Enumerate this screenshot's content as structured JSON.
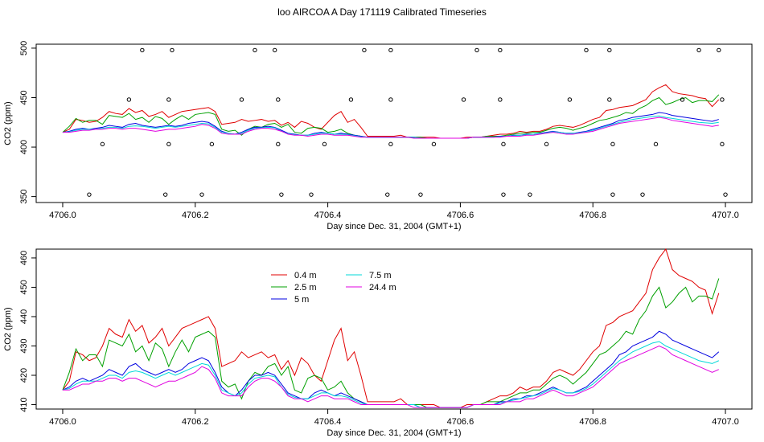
{
  "title": "loo AIRCOA A  Day 171119  Calibrated Timeseries",
  "colors": {
    "0.4 m": "#e00000",
    "2.5 m": "#00a000",
    "5 m": "#0000e0",
    "7.5 m": "#00d8d8",
    "24.4 m": "#e000e0"
  },
  "chart_data": [
    {
      "type": "line",
      "xlabel": "Day since Dec. 31, 2004 (GMT+1)",
      "ylabel": "CO2 (ppm)",
      "xlim": [
        4706.0,
        4707.0
      ],
      "ylim": [
        350,
        500
      ],
      "xticks": [
        "4706.0",
        "4706.2",
        "4706.4",
        "4706.6",
        "4706.8",
        "4707.0"
      ],
      "yticks": [
        "350",
        "400",
        "450",
        "500"
      ],
      "x": [
        4706.0,
        4706.01,
        4706.02,
        4706.03,
        4706.04,
        4706.05,
        4706.06,
        4706.07,
        4706.08,
        4706.09,
        4706.1,
        4706.11,
        4706.12,
        4706.13,
        4706.14,
        4706.15,
        4706.16,
        4706.17,
        4706.18,
        4706.19,
        4706.2,
        4706.21,
        4706.22,
        4706.23,
        4706.24,
        4706.25,
        4706.26,
        4706.27,
        4706.28,
        4706.29,
        4706.3,
        4706.31,
        4706.32,
        4706.33,
        4706.34,
        4706.35,
        4706.36,
        4706.37,
        4706.38,
        4706.39,
        4706.4,
        4706.41,
        4706.42,
        4706.43,
        4706.44,
        4706.45,
        4706.46,
        4706.47,
        4706.48,
        4706.49,
        4706.5,
        4706.51,
        4706.52,
        4706.53,
        4706.54,
        4706.55,
        4706.56,
        4706.57,
        4706.58,
        4706.59,
        4706.6,
        4706.61,
        4706.62,
        4706.63,
        4706.64,
        4706.65,
        4706.66,
        4706.67,
        4706.68,
        4706.69,
        4706.7,
        4706.71,
        4706.72,
        4706.73,
        4706.74,
        4706.75,
        4706.76,
        4706.77,
        4706.78,
        4706.79,
        4706.8,
        4706.81,
        4706.82,
        4706.83,
        4706.84,
        4706.85,
        4706.86,
        4706.87,
        4706.88,
        4706.89,
        4706.9,
        4706.91,
        4706.92,
        4706.93,
        4706.94,
        4706.95,
        4706.96,
        4706.97,
        4706.98,
        4706.99
      ],
      "series": [
        {
          "name": "0.4 m",
          "values": [
            415,
            418,
            428,
            427,
            425,
            426,
            430,
            436,
            434,
            433,
            439,
            435,
            437,
            431,
            433,
            436,
            430,
            433,
            436,
            437,
            438,
            439,
            440,
            436,
            423,
            424,
            425,
            428,
            426,
            427,
            428,
            426,
            427,
            422,
            425,
            420,
            426,
            424,
            420,
            418,
            425,
            432,
            436,
            425,
            428,
            420,
            411,
            411,
            411,
            411,
            411,
            412,
            410,
            410,
            410,
            410,
            410,
            409,
            409,
            409,
            409,
            410,
            410,
            410,
            411,
            412,
            413,
            413,
            414,
            416,
            415,
            416,
            416,
            418,
            421,
            422,
            421,
            420,
            422,
            425,
            428,
            430,
            437,
            438,
            440,
            441,
            442,
            445,
            448,
            456,
            460,
            463,
            456,
            454,
            453,
            452,
            450,
            449,
            441,
            448
          ]
        },
        {
          "name": "2.5 m",
          "values": [
            415,
            421,
            429,
            425,
            427,
            427,
            423,
            432,
            431,
            430,
            434,
            428,
            430,
            425,
            431,
            429,
            423,
            428,
            432,
            428,
            433,
            434,
            435,
            433,
            418,
            416,
            417,
            412,
            418,
            421,
            420,
            423,
            424,
            420,
            423,
            415,
            414,
            419,
            420,
            419,
            415,
            416,
            418,
            414,
            412,
            411,
            410,
            410,
            410,
            410,
            410,
            410,
            410,
            410,
            410,
            409,
            409,
            409,
            409,
            409,
            409,
            409,
            410,
            410,
            411,
            411,
            411,
            412,
            413,
            414,
            414,
            415,
            415,
            417,
            419,
            420,
            419,
            417,
            419,
            421,
            424,
            427,
            428,
            430,
            432,
            435,
            434,
            439,
            442,
            447,
            450,
            443,
            445,
            448,
            450,
            445,
            447,
            447,
            446,
            453
          ]
        },
        {
          "name": "5 m",
          "values": [
            415,
            416,
            418,
            419,
            418,
            419,
            420,
            422,
            421,
            420,
            423,
            424,
            422,
            421,
            420,
            421,
            422,
            421,
            422,
            424,
            425,
            426,
            425,
            421,
            416,
            414,
            413,
            415,
            418,
            420,
            420,
            421,
            420,
            417,
            414,
            413,
            412,
            412,
            414,
            415,
            414,
            413,
            414,
            413,
            412,
            411,
            410,
            410,
            410,
            410,
            410,
            410,
            410,
            410,
            409,
            409,
            409,
            409,
            409,
            409,
            409,
            409,
            410,
            410,
            410,
            410,
            411,
            411,
            412,
            412,
            413,
            413,
            414,
            415,
            416,
            415,
            414,
            414,
            415,
            416,
            418,
            420,
            422,
            424,
            427,
            428,
            430,
            431,
            432,
            433,
            435,
            434,
            432,
            431,
            430,
            429,
            428,
            427,
            426,
            428
          ]
        },
        {
          "name": "7.5 m",
          "values": [
            415,
            415.5,
            417,
            418,
            418,
            418,
            419,
            420,
            420,
            419,
            421,
            421.5,
            421,
            420,
            419,
            420,
            421,
            420,
            421,
            422,
            423,
            424,
            423.5,
            420,
            415,
            414,
            413,
            414,
            417,
            419,
            419.5,
            420,
            419.5,
            416,
            413.5,
            412.5,
            412,
            412,
            413,
            414,
            414,
            413,
            413,
            412.5,
            411.5,
            410.5,
            410,
            410,
            410,
            410,
            410,
            410,
            410,
            410,
            409,
            409,
            409,
            409,
            409,
            409,
            409,
            409,
            410,
            410,
            410,
            410,
            410.5,
            411,
            411.5,
            412,
            412.5,
            413,
            413.5,
            414.5,
            415.5,
            415,
            414,
            414,
            414.5,
            415.5,
            417,
            419,
            421,
            423,
            425,
            426.5,
            428,
            429,
            430,
            431,
            431.5,
            430,
            429,
            428,
            427,
            426,
            425,
            424.5,
            424,
            425
          ]
        },
        {
          "name": "24.4 m",
          "values": [
            415,
            415,
            416,
            417,
            417,
            418,
            418,
            419,
            419,
            418,
            419,
            419,
            418,
            417,
            416,
            417,
            418,
            418,
            419,
            420,
            421,
            423,
            422,
            419,
            414,
            413,
            413,
            413,
            416,
            418,
            419,
            419,
            418,
            416,
            413,
            412,
            412,
            411,
            412,
            413,
            413,
            412,
            412,
            412,
            411,
            410,
            410,
            410,
            410,
            410,
            410,
            410,
            410,
            409,
            409,
            409,
            409,
            409,
            409,
            409,
            409,
            409,
            410,
            410,
            410,
            410,
            410,
            411,
            411,
            411,
            412,
            412,
            413,
            414,
            415,
            414,
            413,
            413,
            414,
            415,
            416,
            418,
            420,
            422,
            424,
            425,
            426,
            427,
            428,
            429,
            430,
            429,
            427,
            426,
            425,
            424,
            423,
            422,
            421,
            422
          ]
        }
      ],
      "markers": {
        "type": "scatter",
        "x": [
          4706.04,
          4706.06,
          4706.1,
          4706.12,
          4706.155,
          4706.16,
          4706.16,
          4706.165,
          4706.21,
          4706.225,
          4706.27,
          4706.29,
          4706.32,
          4706.325,
          4706.325,
          4706.33,
          4706.375,
          4706.395,
          4706.435,
          4706.455,
          4706.49,
          4706.495,
          4706.495,
          4706.495,
          4706.54,
          4706.56,
          4706.605,
          4706.625,
          4706.66,
          4706.66,
          4706.665,
          4706.665,
          4706.705,
          4706.73,
          4706.765,
          4706.79,
          4706.825,
          4706.825,
          4706.83,
          4706.83,
          4706.875,
          4706.895,
          4706.935,
          4706.96,
          4706.99,
          4706.995,
          4706.995,
          4707.0
        ],
        "y": [
          352,
          403,
          448,
          498,
          352,
          403,
          448,
          498,
          352,
          403,
          448,
          498,
          498,
          448,
          403,
          352,
          352,
          403,
          448,
          498,
          352,
          403,
          448,
          498,
          352,
          403,
          448,
          498,
          498,
          448,
          403,
          352,
          352,
          403,
          448,
          498,
          498,
          448,
          403,
          352,
          352,
          403,
          448,
          498,
          498,
          448,
          403,
          352
        ]
      }
    },
    {
      "type": "line",
      "xlabel": "Day since Dec. 31, 2004 (GMT+1)",
      "ylabel": "CO2 (ppm)",
      "xlim": [
        4706.0,
        4707.0
      ],
      "ylim": [
        409,
        462
      ],
      "xticks": [
        "4706.0",
        "4706.2",
        "4706.4",
        "4706.6",
        "4706.8",
        "4707.0"
      ],
      "yticks": [
        "410",
        "420",
        "430",
        "440",
        "450",
        "460"
      ],
      "legend": [
        "0.4 m",
        "2.5 m",
        "5 m",
        "7.5 m",
        "24.4 m"
      ],
      "series_ref": "same as first chart"
    }
  ]
}
